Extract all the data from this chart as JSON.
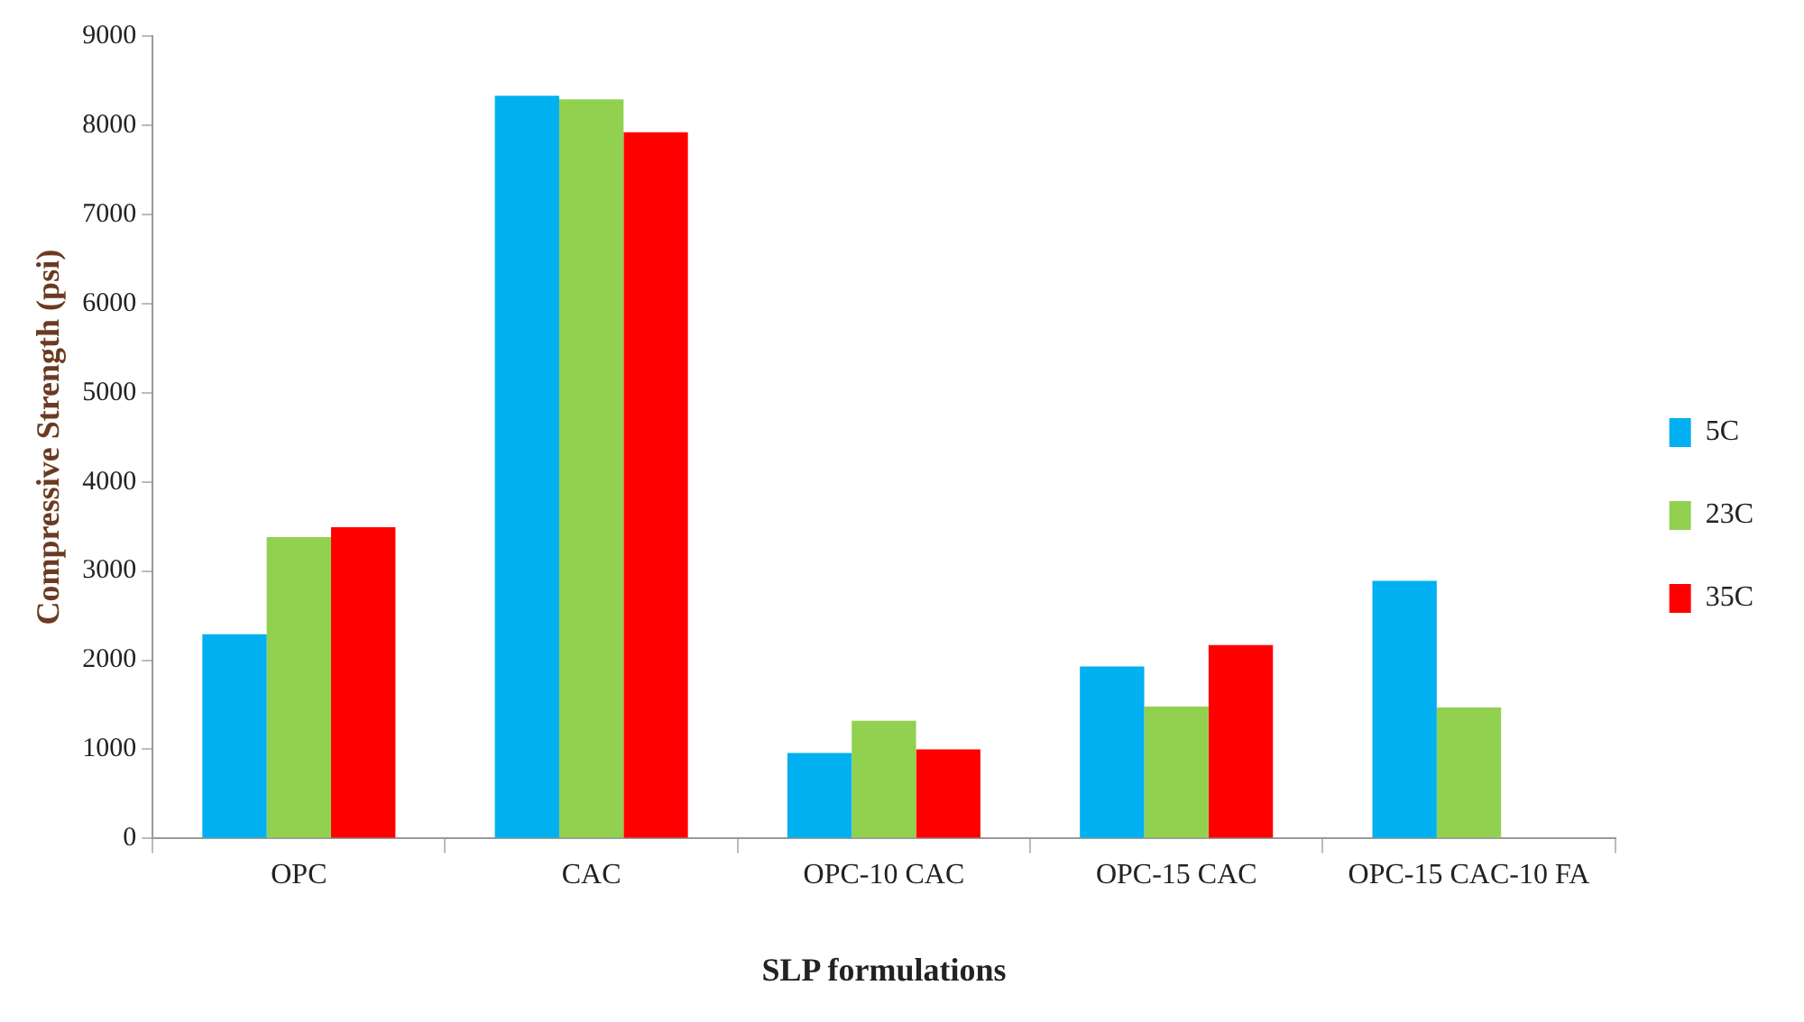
{
  "chart_data": {
    "type": "bar",
    "xlabel": "SLP formulations",
    "ylabel": "Compressive Strength (psi)",
    "categories": [
      "OPC",
      "CAC",
      "OPC-10 CAC",
      "OPC-15 CAC",
      "OPC-15 CAC-10 FA"
    ],
    "series": [
      {
        "name": "5C",
        "color": "#00b0f0",
        "values": [
          2290,
          8330,
          960,
          1930,
          2890
        ]
      },
      {
        "name": "23C",
        "color": "#92d050",
        "values": [
          3380,
          8290,
          1320,
          1480,
          1470
        ]
      },
      {
        "name": "35C",
        "color": "#ff0000",
        "values": [
          3490,
          7920,
          1000,
          2170,
          null
        ]
      }
    ],
    "ylim": [
      0,
      9000
    ],
    "yticks": [
      0,
      1000,
      2000,
      3000,
      4000,
      5000,
      6000,
      7000,
      8000,
      9000
    ],
    "grid": false,
    "legend": "right"
  }
}
